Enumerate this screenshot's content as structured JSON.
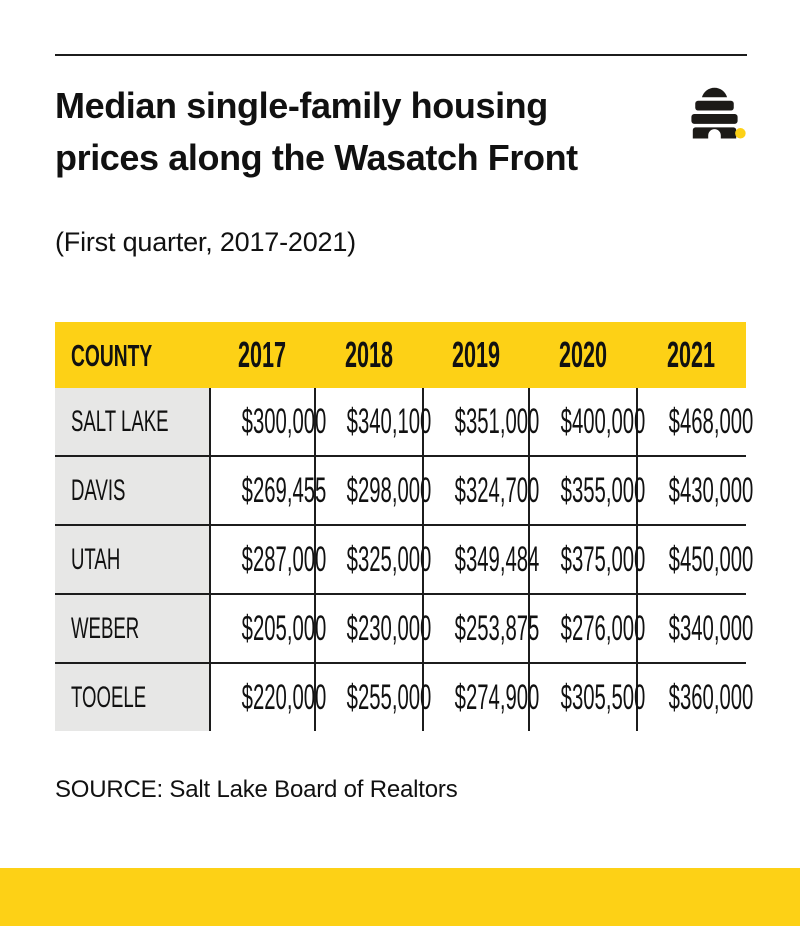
{
  "page": {
    "background": "#FFFFFF",
    "accent_yellow": "#FDD116",
    "county_column_bg": "#E7E7E6",
    "line_color": "#1C1C1C",
    "text_color": "#111111"
  },
  "header": {
    "title_lines": [
      "Median single-family housing",
      "prices along the Wasatch Front"
    ],
    "subtitle": "(First quarter, 2017-2021)",
    "logo_icon": "beehive-with-yellow-dot"
  },
  "table": {
    "columns": [
      "COUNTY",
      "2017",
      "2018",
      "2019",
      "2020",
      "2021"
    ],
    "rows": [
      [
        "SALT LAKE",
        "$300,000",
        "$340,100",
        "$351,000",
        "$400,000",
        "$468,000"
      ],
      [
        "DAVIS",
        "$269,455",
        "$298,000",
        "$324,700",
        "$355,000",
        "$430,000"
      ],
      [
        "UTAH",
        "$287,000",
        "$325,000",
        "$349,484",
        "$375,000",
        "$450,000"
      ],
      [
        "WEBER",
        "$205,000",
        "$230,000",
        "$253,875",
        "$276,000",
        "$340,000"
      ],
      [
        "TOOELE",
        "$220,000",
        "$255,000",
        "$274,900",
        "$305,500",
        "$360,000"
      ]
    ]
  },
  "footer": {
    "source": "SOURCE: Salt Lake Board of Realtors"
  },
  "chart_data": {
    "type": "table",
    "title": "Median single-family housing prices along the Wasatch Front",
    "subtitle": "(First quarter, 2017-2021)",
    "categories": [
      "2017",
      "2018",
      "2019",
      "2020",
      "2021"
    ],
    "series": [
      {
        "name": "SALT LAKE",
        "values": [
          300000,
          340100,
          351000,
          400000,
          468000
        ]
      },
      {
        "name": "DAVIS",
        "values": [
          269455,
          298000,
          324700,
          355000,
          430000
        ]
      },
      {
        "name": "UTAH",
        "values": [
          287000,
          325000,
          349484,
          375000,
          450000
        ]
      },
      {
        "name": "WEBER",
        "values": [
          205000,
          230000,
          253875,
          276000,
          340000
        ]
      },
      {
        "name": "TOOELE",
        "values": [
          220000,
          255000,
          274900,
          305500,
          360000
        ]
      }
    ],
    "source": "SOURCE: Salt Lake Board of Realtors"
  }
}
